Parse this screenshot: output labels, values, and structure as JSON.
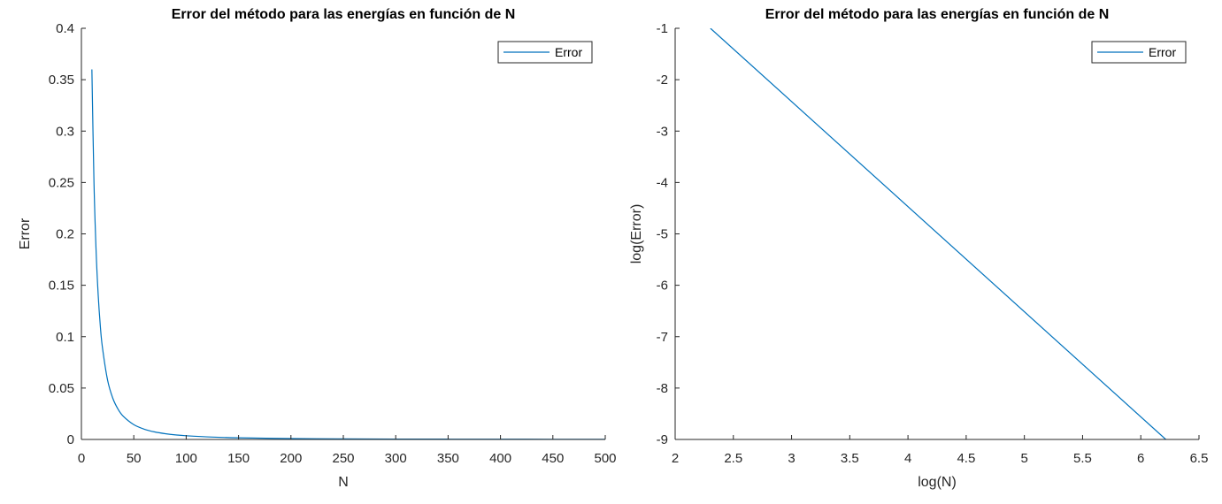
{
  "colors": {
    "series": "#0072BD",
    "axis": "#262626",
    "background": "#ffffff"
  },
  "chart_data": [
    {
      "type": "line",
      "title": "Error del método para las energías en función de N",
      "xlabel": "N",
      "ylabel": "Error",
      "xlim": [
        0,
        500
      ],
      "ylim": [
        0,
        0.4
      ],
      "xticks": [
        0,
        50,
        100,
        150,
        200,
        250,
        300,
        350,
        400,
        450,
        500
      ],
      "xtick_labels": [
        "0",
        "50",
        "100",
        "150",
        "200",
        "250",
        "300",
        "350",
        "400",
        "450",
        "500"
      ],
      "yticks": [
        0,
        0.05,
        0.1,
        0.15,
        0.2,
        0.25,
        0.3,
        0.35,
        0.4
      ],
      "ytick_labels": [
        "0",
        "0.05",
        "0.1",
        "0.15",
        "0.2",
        "0.25",
        "0.3",
        "0.35",
        "0.4"
      ],
      "grid": false,
      "legend": {
        "position": "top-right",
        "entries": [
          "Error"
        ]
      },
      "series": [
        {
          "name": "Error",
          "x": [
            10,
            12,
            14,
            16,
            18,
            20,
            25,
            30,
            35,
            40,
            50,
            60,
            70,
            80,
            90,
            100,
            125,
            150,
            200,
            250,
            300,
            350,
            400,
            450,
            500
          ],
          "y": [
            0.36,
            0.25,
            0.184,
            0.141,
            0.111,
            0.09,
            0.0576,
            0.04,
            0.0294,
            0.0225,
            0.0144,
            0.01,
            0.0073,
            0.0056,
            0.0044,
            0.0036,
            0.0023,
            0.0016,
            0.0009,
            0.00058,
            0.0004,
            0.00029,
            0.000225,
            0.000178,
            0.000144
          ]
        }
      ]
    },
    {
      "type": "line",
      "title": "Error del método para las energías en función de N",
      "xlabel": "log(N)",
      "ylabel": "log(Error)",
      "xlim": [
        2,
        6.5
      ],
      "ylim": [
        -9,
        -1
      ],
      "xticks": [
        2,
        2.5,
        3,
        3.5,
        4,
        4.5,
        5,
        5.5,
        6,
        6.5
      ],
      "xtick_labels": [
        "2",
        "2.5",
        "3",
        "3.5",
        "4",
        "4.5",
        "5",
        "5.5",
        "6",
        "6.5"
      ],
      "yticks": [
        -9,
        -8,
        -7,
        -6,
        -5,
        -4,
        -3,
        -2,
        -1
      ],
      "ytick_labels": [
        "-9",
        "-8",
        "-7",
        "-6",
        "-5",
        "-4",
        "-3",
        "-2",
        "-1"
      ],
      "grid": false,
      "legend": {
        "position": "top-right",
        "entries": [
          "Error"
        ]
      },
      "series": [
        {
          "name": "Error",
          "x": [
            2.303,
            6.215
          ],
          "y": [
            -1.0,
            -9.0
          ]
        }
      ]
    }
  ]
}
